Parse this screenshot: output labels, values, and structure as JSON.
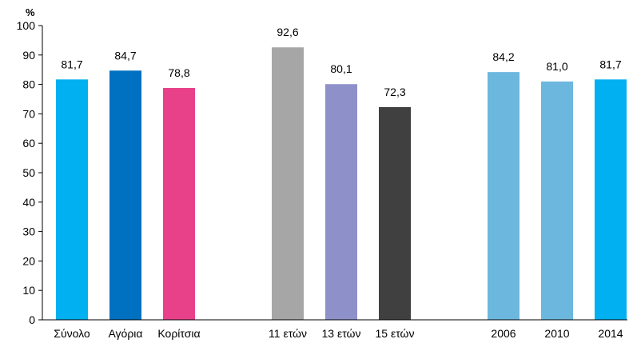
{
  "chart_data": {
    "type": "bar",
    "ylabel": "%",
    "ylim": [
      0,
      100
    ],
    "yticks": [
      0,
      10,
      20,
      30,
      40,
      50,
      60,
      70,
      80,
      90,
      100
    ],
    "grid": false,
    "categories": [
      "Σύνολο",
      "Αγόρια",
      "Κορίτσια",
      "11 ετών",
      "13 ετών",
      "15 ετών",
      "2006",
      "2010",
      "2014"
    ],
    "values": [
      81.7,
      84.7,
      78.8,
      92.6,
      80.1,
      72.3,
      84.2,
      81.0,
      81.7
    ],
    "data_labels": [
      "81,7",
      "84,7",
      "78,8",
      "92,6",
      "80,1",
      "72,3",
      "84,2",
      "81,0",
      "81,7"
    ],
    "colors": [
      "#00b0f0",
      "#0070c0",
      "#e8418a",
      "#a6a6a6",
      "#8e91c9",
      "#404040",
      "#6cb7dd",
      "#6cb7dd",
      "#00b0f0"
    ],
    "groups": [
      {
        "categories": [
          0,
          1,
          2
        ]
      },
      {
        "categories": [
          3,
          4,
          5
        ]
      },
      {
        "categories": [
          6,
          7,
          8
        ]
      }
    ]
  }
}
